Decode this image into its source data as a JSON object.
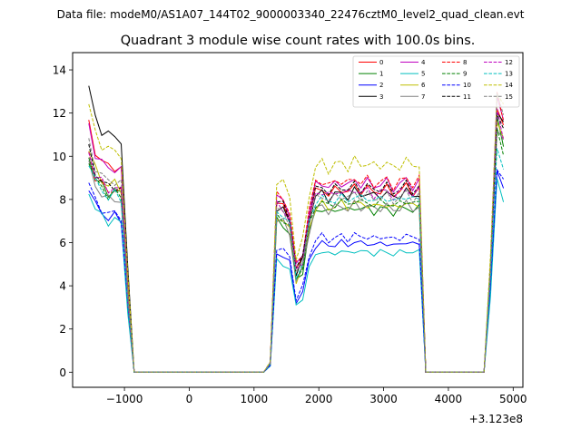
{
  "figure": {
    "suptitle": "Data file: modeM0/AS1A07_144T02_9000003340_22476cztM0_level2_quad_clean.evt",
    "axis_offset_label": "+3.123e8"
  },
  "chart_data": {
    "type": "line",
    "title": "Quadrant 3 module wise count rates with 100.0s bins.",
    "xlabel": "",
    "ylabel": "",
    "xlim": [
      -1800,
      5150
    ],
    "ylim": [
      -0.7,
      14.8
    ],
    "x_ticks": [
      -1000,
      0,
      1000,
      2000,
      3000,
      4000,
      5000
    ],
    "x_tick_labels": [
      "−1000",
      "0",
      "1000",
      "2000",
      "3000",
      "4000",
      "5000"
    ],
    "y_ticks": [
      0,
      2,
      4,
      6,
      8,
      10,
      12,
      14
    ],
    "y_tick_labels": [
      "0",
      "2",
      "4",
      "6",
      "8",
      "10",
      "12",
      "14"
    ],
    "grid": false,
    "legend_position": "top-right",
    "legend_columns": 4,
    "segment_shapes": [
      {
        "x": [
          -1550,
          -1450,
          -1350,
          -1250,
          -1150,
          -1050,
          -950,
          -850
        ],
        "shape": [
          1.0,
          0.9,
          0.86,
          0.83,
          0.84,
          0.82,
          0.35,
          0.0
        ]
      },
      {
        "x": [
          -850,
          1150
        ],
        "shape": [
          0.0,
          0.0
        ]
      },
      {
        "x": [
          1150,
          1250,
          1350,
          1450,
          1550,
          1650,
          1750,
          1850,
          1950,
          2050,
          2150,
          2250,
          2350,
          2450,
          2550,
          2650,
          2750,
          2850,
          2950,
          3050,
          3150,
          3250,
          3350,
          3450,
          3550,
          3650
        ],
        "shape": [
          0.0,
          0.05,
          0.92,
          0.9,
          0.84,
          0.55,
          0.62,
          0.85,
          0.98,
          1.0,
          0.97,
          0.99,
          1.0,
          0.98,
          1.01,
          0.99,
          1.0,
          0.98,
          0.99,
          1.0,
          0.97,
          0.99,
          1.01,
          0.98,
          1.0,
          0.02
        ]
      },
      {
        "x": [
          3650,
          3750,
          4550
        ],
        "shape": [
          0.02,
          0.0,
          0.0
        ]
      },
      {
        "x": [
          4550,
          4650,
          4750,
          4850
        ],
        "shape": [
          0.0,
          0.4,
          1.0,
          0.92
        ]
      }
    ],
    "series": [
      {
        "name": "0",
        "color": "#ff0000",
        "dash": "solid",
        "levels": [
          11.4,
          8.5,
          12.2
        ]
      },
      {
        "name": "1",
        "color": "#008000",
        "dash": "solid",
        "levels": [
          10.0,
          7.6,
          11.6
        ]
      },
      {
        "name": "2",
        "color": "#0000ff",
        "dash": "solid",
        "levels": [
          8.6,
          6.0,
          9.4
        ]
      },
      {
        "name": "3",
        "color": "#000000",
        "dash": "solid",
        "levels": [
          13.1,
          8.3,
          12.3
        ]
      },
      {
        "name": "4",
        "color": "#bf00bf",
        "dash": "solid",
        "levels": [
          11.3,
          8.8,
          12.6
        ]
      },
      {
        "name": "5",
        "color": "#00bfbf",
        "dash": "solid",
        "levels": [
          8.4,
          5.6,
          8.8
        ]
      },
      {
        "name": "6",
        "color": "#bfbf00",
        "dash": "solid",
        "levels": [
          10.4,
          7.8,
          11.8
        ]
      },
      {
        "name": "7",
        "color": "#808080",
        "dash": "solid",
        "levels": [
          9.6,
          7.7,
          11.4
        ]
      },
      {
        "name": "8",
        "color": "#ff0000",
        "dash": "dashed",
        "levels": [
          10.1,
          8.9,
          12.7
        ]
      },
      {
        "name": "9",
        "color": "#008000",
        "dash": "dashed",
        "levels": [
          9.9,
          7.9,
          11.2
        ]
      },
      {
        "name": "10",
        "color": "#0000ff",
        "dash": "dashed",
        "levels": [
          8.8,
          6.3,
          9.6
        ]
      },
      {
        "name": "11",
        "color": "#000000",
        "dash": "dashed",
        "levels": [
          10.3,
          8.6,
          12.0
        ]
      },
      {
        "name": "12",
        "color": "#bf00bf",
        "dash": "dashed",
        "levels": [
          10.2,
          8.4,
          11.9
        ]
      },
      {
        "name": "13",
        "color": "#00bfbf",
        "dash": "dashed",
        "levels": [
          9.8,
          8.1,
          10.4
        ]
      },
      {
        "name": "14",
        "color": "#bfbf00",
        "dash": "dashed",
        "levels": [
          12.3,
          9.7,
          13.2
        ]
      },
      {
        "name": "15",
        "color": "#808080",
        "dash": "dashed",
        "levels": [
          10.6,
          8.2,
          12.8
        ]
      }
    ]
  }
}
